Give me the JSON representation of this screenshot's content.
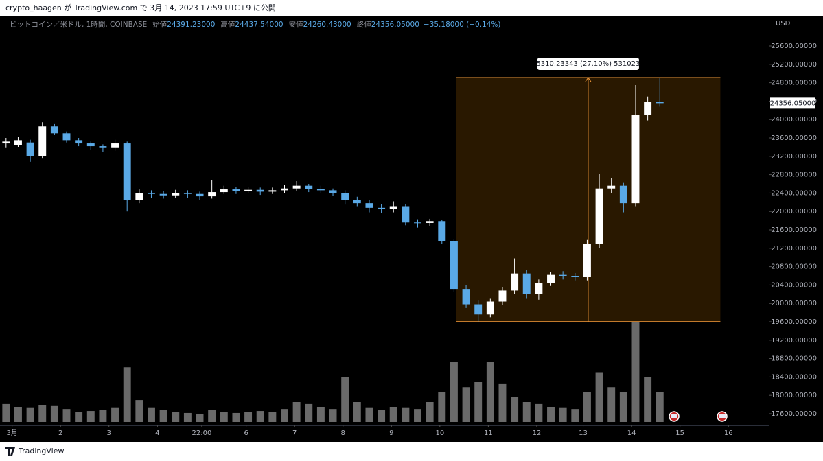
{
  "chart_data": {
    "type": "candlestick",
    "header": "crypto_haagen が TradingView.com で 3月 14, 2023 17:59 UTC+9 に公開",
    "symbol": "ビットコイン／米ドル, 1時間, COINBASE",
    "ohlc_legend": [
      {
        "name": "始値",
        "value": 24391.23,
        "label": "24391.23000"
      },
      {
        "name": "高値",
        "value": 24437.54,
        "label": "24437.54000"
      },
      {
        "name": "安値",
        "value": 24260.43,
        "label": "24260.43000"
      },
      {
        "name": "終値",
        "value": 24356.05,
        "label": "24356.05000"
      }
    ],
    "change": {
      "value": -35.18,
      "label": "−35.18000 (−0.14%)"
    },
    "y_axis_unit": "USD",
    "brand": "TradingView",
    "up_color": "#ffffff",
    "down_color": "#5aa9e6",
    "volume_color": "#6a6a6a",
    "grid": false,
    "x": [
      -3,
      3,
      9,
      15,
      21,
      27,
      33,
      39,
      45,
      51,
      57,
      63,
      69,
      75,
      81,
      87,
      93,
      99,
      105,
      111,
      117,
      123,
      129,
      135,
      141,
      147,
      153,
      159,
      165,
      171,
      177,
      183,
      189,
      195,
      201,
      207,
      213,
      219,
      225,
      231,
      237,
      243,
      249,
      255,
      261,
      267,
      273,
      279,
      285,
      291,
      297,
      303,
      309,
      315,
      321
    ],
    "open": [
      23480,
      23450,
      23500,
      23200,
      23850,
      23700,
      23550,
      23480,
      23420,
      23380,
      23480,
      22250,
      22400,
      22380,
      22350,
      22400,
      22380,
      22330,
      22420,
      22480,
      22450,
      22470,
      22430,
      22460,
      22500,
      22560,
      22490,
      22460,
      22400,
      22250,
      22180,
      22080,
      22050,
      22100,
      21760,
      21750,
      21790,
      21350,
      20300,
      19980,
      19760,
      20040,
      20280,
      20650,
      20200,
      20450,
      20620,
      20600,
      20570,
      21300,
      22500,
      22560,
      22180,
      24100,
      24380
    ],
    "high": [
      23600,
      23620,
      23560,
      23940,
      23900,
      23740,
      23600,
      23520,
      23460,
      23560,
      23520,
      22480,
      22460,
      22440,
      22470,
      22460,
      22430,
      22680,
      22560,
      22540,
      22540,
      22520,
      22520,
      22580,
      22660,
      22600,
      22560,
      22500,
      22460,
      22320,
      22250,
      22160,
      22220,
      22160,
      21830,
      21840,
      21820,
      21400,
      20400,
      20060,
      20100,
      20360,
      20980,
      20720,
      20520,
      20680,
      20700,
      20660,
      21380,
      22820,
      22720,
      22620,
      24750,
      24500,
      24914
    ],
    "low": [
      23380,
      23400,
      23080,
      23150,
      23660,
      23500,
      23420,
      23340,
      23300,
      23320,
      22000,
      22180,
      22300,
      22280,
      22290,
      22300,
      22250,
      22280,
      22380,
      22380,
      22390,
      22360,
      22380,
      22400,
      22440,
      22420,
      22400,
      22340,
      22150,
      22100,
      21980,
      21960,
      21980,
      21700,
      21650,
      21680,
      21300,
      20250,
      19900,
      19603.77,
      19700,
      19960,
      20200,
      20100,
      20080,
      20380,
      20520,
      20500,
      20500,
      21200,
      22400,
      21980,
      22100,
      23980,
      24280
    ],
    "close": [
      23520,
      23550,
      23200,
      23850,
      23700,
      23550,
      23480,
      23420,
      23380,
      23480,
      22250,
      22400,
      22380,
      22350,
      22400,
      22380,
      22330,
      22420,
      22480,
      22450,
      22470,
      22430,
      22460,
      22500,
      22560,
      22490,
      22460,
      22400,
      22250,
      22180,
      22080,
      22050,
      22100,
      21760,
      21750,
      21790,
      21350,
      20300,
      19980,
      19760,
      20040,
      20280,
      20650,
      20200,
      20450,
      20620,
      20600,
      20570,
      21300,
      22500,
      22560,
      22180,
      24100,
      24380,
      24356.05
    ],
    "volume": {
      "values": [
        18,
        15,
        14,
        17,
        16,
        13,
        10,
        11,
        12,
        14,
        55,
        22,
        14,
        12,
        10,
        9,
        8,
        12,
        10,
        9,
        10,
        11,
        10,
        13,
        20,
        18,
        15,
        13,
        45,
        20,
        14,
        12,
        15,
        14,
        13,
        20,
        30,
        60,
        35,
        40,
        60,
        38,
        25,
        20,
        18,
        15,
        14,
        13,
        30,
        50,
        35,
        30,
        100,
        45,
        30
      ],
      "vlim": [
        0,
        100
      ]
    },
    "measure": {
      "price_from": 19603.77,
      "price_to": 24914,
      "x_from": 220,
      "x_to": 351,
      "label": "5310.23343 (27.10%) 531023"
    },
    "last_price": {
      "value": 24356.05,
      "label": "24356.05000"
    },
    "xlim": [
      -6,
      375
    ],
    "xticks": [
      {
        "value": 0,
        "label": "3月"
      },
      {
        "value": 24,
        "label": "2"
      },
      {
        "value": 48,
        "label": "3"
      },
      {
        "value": 72,
        "label": "4"
      },
      {
        "value": 94,
        "label": "22:00"
      },
      {
        "value": 116,
        "label": "6"
      },
      {
        "value": 140,
        "label": "7"
      },
      {
        "value": 164,
        "label": "8"
      },
      {
        "value": 188,
        "label": "9"
      },
      {
        "value": 212,
        "label": "10"
      },
      {
        "value": 236,
        "label": "11"
      },
      {
        "value": 260,
        "label": "12"
      },
      {
        "value": 283,
        "label": "13"
      },
      {
        "value": 307,
        "label": "14"
      },
      {
        "value": 331,
        "label": "15"
      },
      {
        "value": 355,
        "label": "16"
      }
    ],
    "ylim": [
      17346,
      26242
    ],
    "yticks": [
      {
        "value": 17600,
        "label": "17600.00000"
      },
      {
        "value": 18000,
        "label": "18000.00000"
      },
      {
        "value": 18400,
        "label": "18400.00000"
      },
      {
        "value": 18800,
        "label": "18800.00000"
      },
      {
        "value": 19200,
        "label": "19200.00000"
      },
      {
        "value": 19600,
        "label": "19600.00000"
      },
      {
        "value": 20000,
        "label": "20000.00000"
      },
      {
        "value": 20400,
        "label": "20400.00000"
      },
      {
        "value": 20800,
        "label": "20800.00000"
      },
      {
        "value": 21200,
        "label": "21200.00000"
      },
      {
        "value": 21600,
        "label": "21600.00000"
      },
      {
        "value": 22000,
        "label": "22000.00000"
      },
      {
        "value": 22400,
        "label": "22400.00000"
      },
      {
        "value": 22800,
        "label": "22800.00000"
      },
      {
        "value": 23200,
        "label": "23200.00000"
      },
      {
        "value": 23600,
        "label": "23600.00000"
      },
      {
        "value": 24000,
        "label": "24000.00000"
      },
      {
        "value": 24400,
        "label": "24400.00000"
      },
      {
        "value": 24800,
        "label": "24800.00000"
      },
      {
        "value": 25200,
        "label": "25200.00000"
      },
      {
        "value": 25600,
        "label": "25600.00000"
      }
    ]
  }
}
